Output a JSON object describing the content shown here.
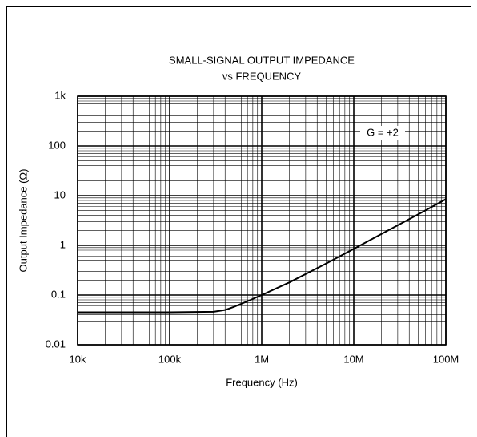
{
  "chart_data": {
    "type": "line",
    "title": [
      "SMALL-SIGNAL OUTPUT IMPEDANCE",
      "vs FREQUENCY"
    ],
    "x_label": "Frequency (Hz)",
    "y_label": "Output Impedance (Ω)",
    "annotation": "G = +2",
    "x": [
      10000,
      100000,
      300000,
      400000,
      500000,
      700000,
      1000000,
      2000000,
      5000000,
      10000000,
      20000000,
      50000000,
      100000000
    ],
    "series": [
      {
        "color": "#000000",
        "values": [
          0.045,
          0.045,
          0.046,
          0.05,
          0.058,
          0.075,
          0.1,
          0.18,
          0.43,
          0.85,
          1.7,
          4.2,
          8.5
        ]
      }
    ],
    "xscale": "log",
    "yscale": "log",
    "xlim": [
      10000,
      100000000
    ],
    "ylim": [
      0.01,
      1000
    ],
    "xticks": [
      {
        "value": 10000,
        "label": "10k"
      },
      {
        "value": 100000,
        "label": "100k"
      },
      {
        "value": 1000000,
        "label": "1M"
      },
      {
        "value": 10000000,
        "label": "10M"
      },
      {
        "value": 100000000,
        "label": "100M"
      }
    ],
    "yticks": [
      0.01,
      0.1,
      1,
      10,
      100,
      {
        "value": 1000,
        "label": "1k"
      }
    ],
    "xminor": [
      20000,
      30000,
      40000,
      50000,
      60000,
      70000,
      80000,
      90000,
      200000,
      300000,
      400000,
      500000,
      600000,
      700000,
      800000,
      900000,
      2000000,
      3000000,
      4000000,
      5000000,
      6000000,
      7000000,
      8000000,
      9000000,
      20000000,
      30000000,
      40000000,
      50000000,
      60000000,
      70000000,
      80000000,
      90000000
    ],
    "yminor": [
      0.02,
      0.03,
      0.04,
      0.05,
      0.06,
      0.07,
      0.08,
      0.09,
      0.2,
      0.3,
      0.4,
      0.5,
      0.6,
      0.7,
      0.8,
      0.9,
      2,
      3,
      4,
      5,
      6,
      7,
      8,
      9,
      20,
      30,
      40,
      50,
      60,
      70,
      80,
      90,
      200,
      300,
      400,
      500,
      600,
      700,
      800,
      900
    ],
    "grid": true,
    "minor_grid": true
  }
}
